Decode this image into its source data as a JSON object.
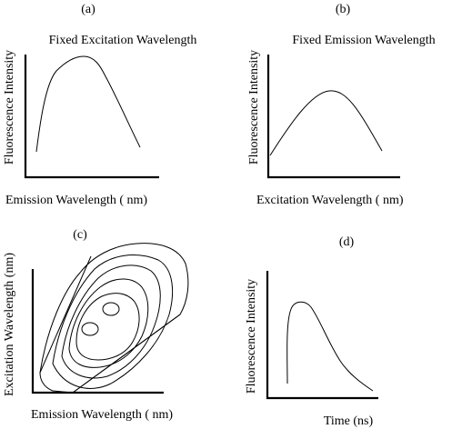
{
  "panels": {
    "a": {
      "tag": "(a)",
      "title": "Fixed Excitation Wavelength",
      "xlabel": "Emission Wavelength ( nm)",
      "ylabel": "Fluorescence Intensity"
    },
    "b": {
      "tag": "(b)",
      "title": "Fixed Emission Wavelength",
      "xlabel": "Excitation Wavelength ( nm)",
      "ylabel": "Fluorescence Intensity"
    },
    "c": {
      "tag": "(c)",
      "xlabel": "Emission Wavelength ( nm)",
      "ylabel": "Excitation Wavelength (nm)"
    },
    "d": {
      "tag": "(d)",
      "xlabel": "Time (ns)",
      "ylabel": "Fluorescence Intensity"
    }
  }
}
